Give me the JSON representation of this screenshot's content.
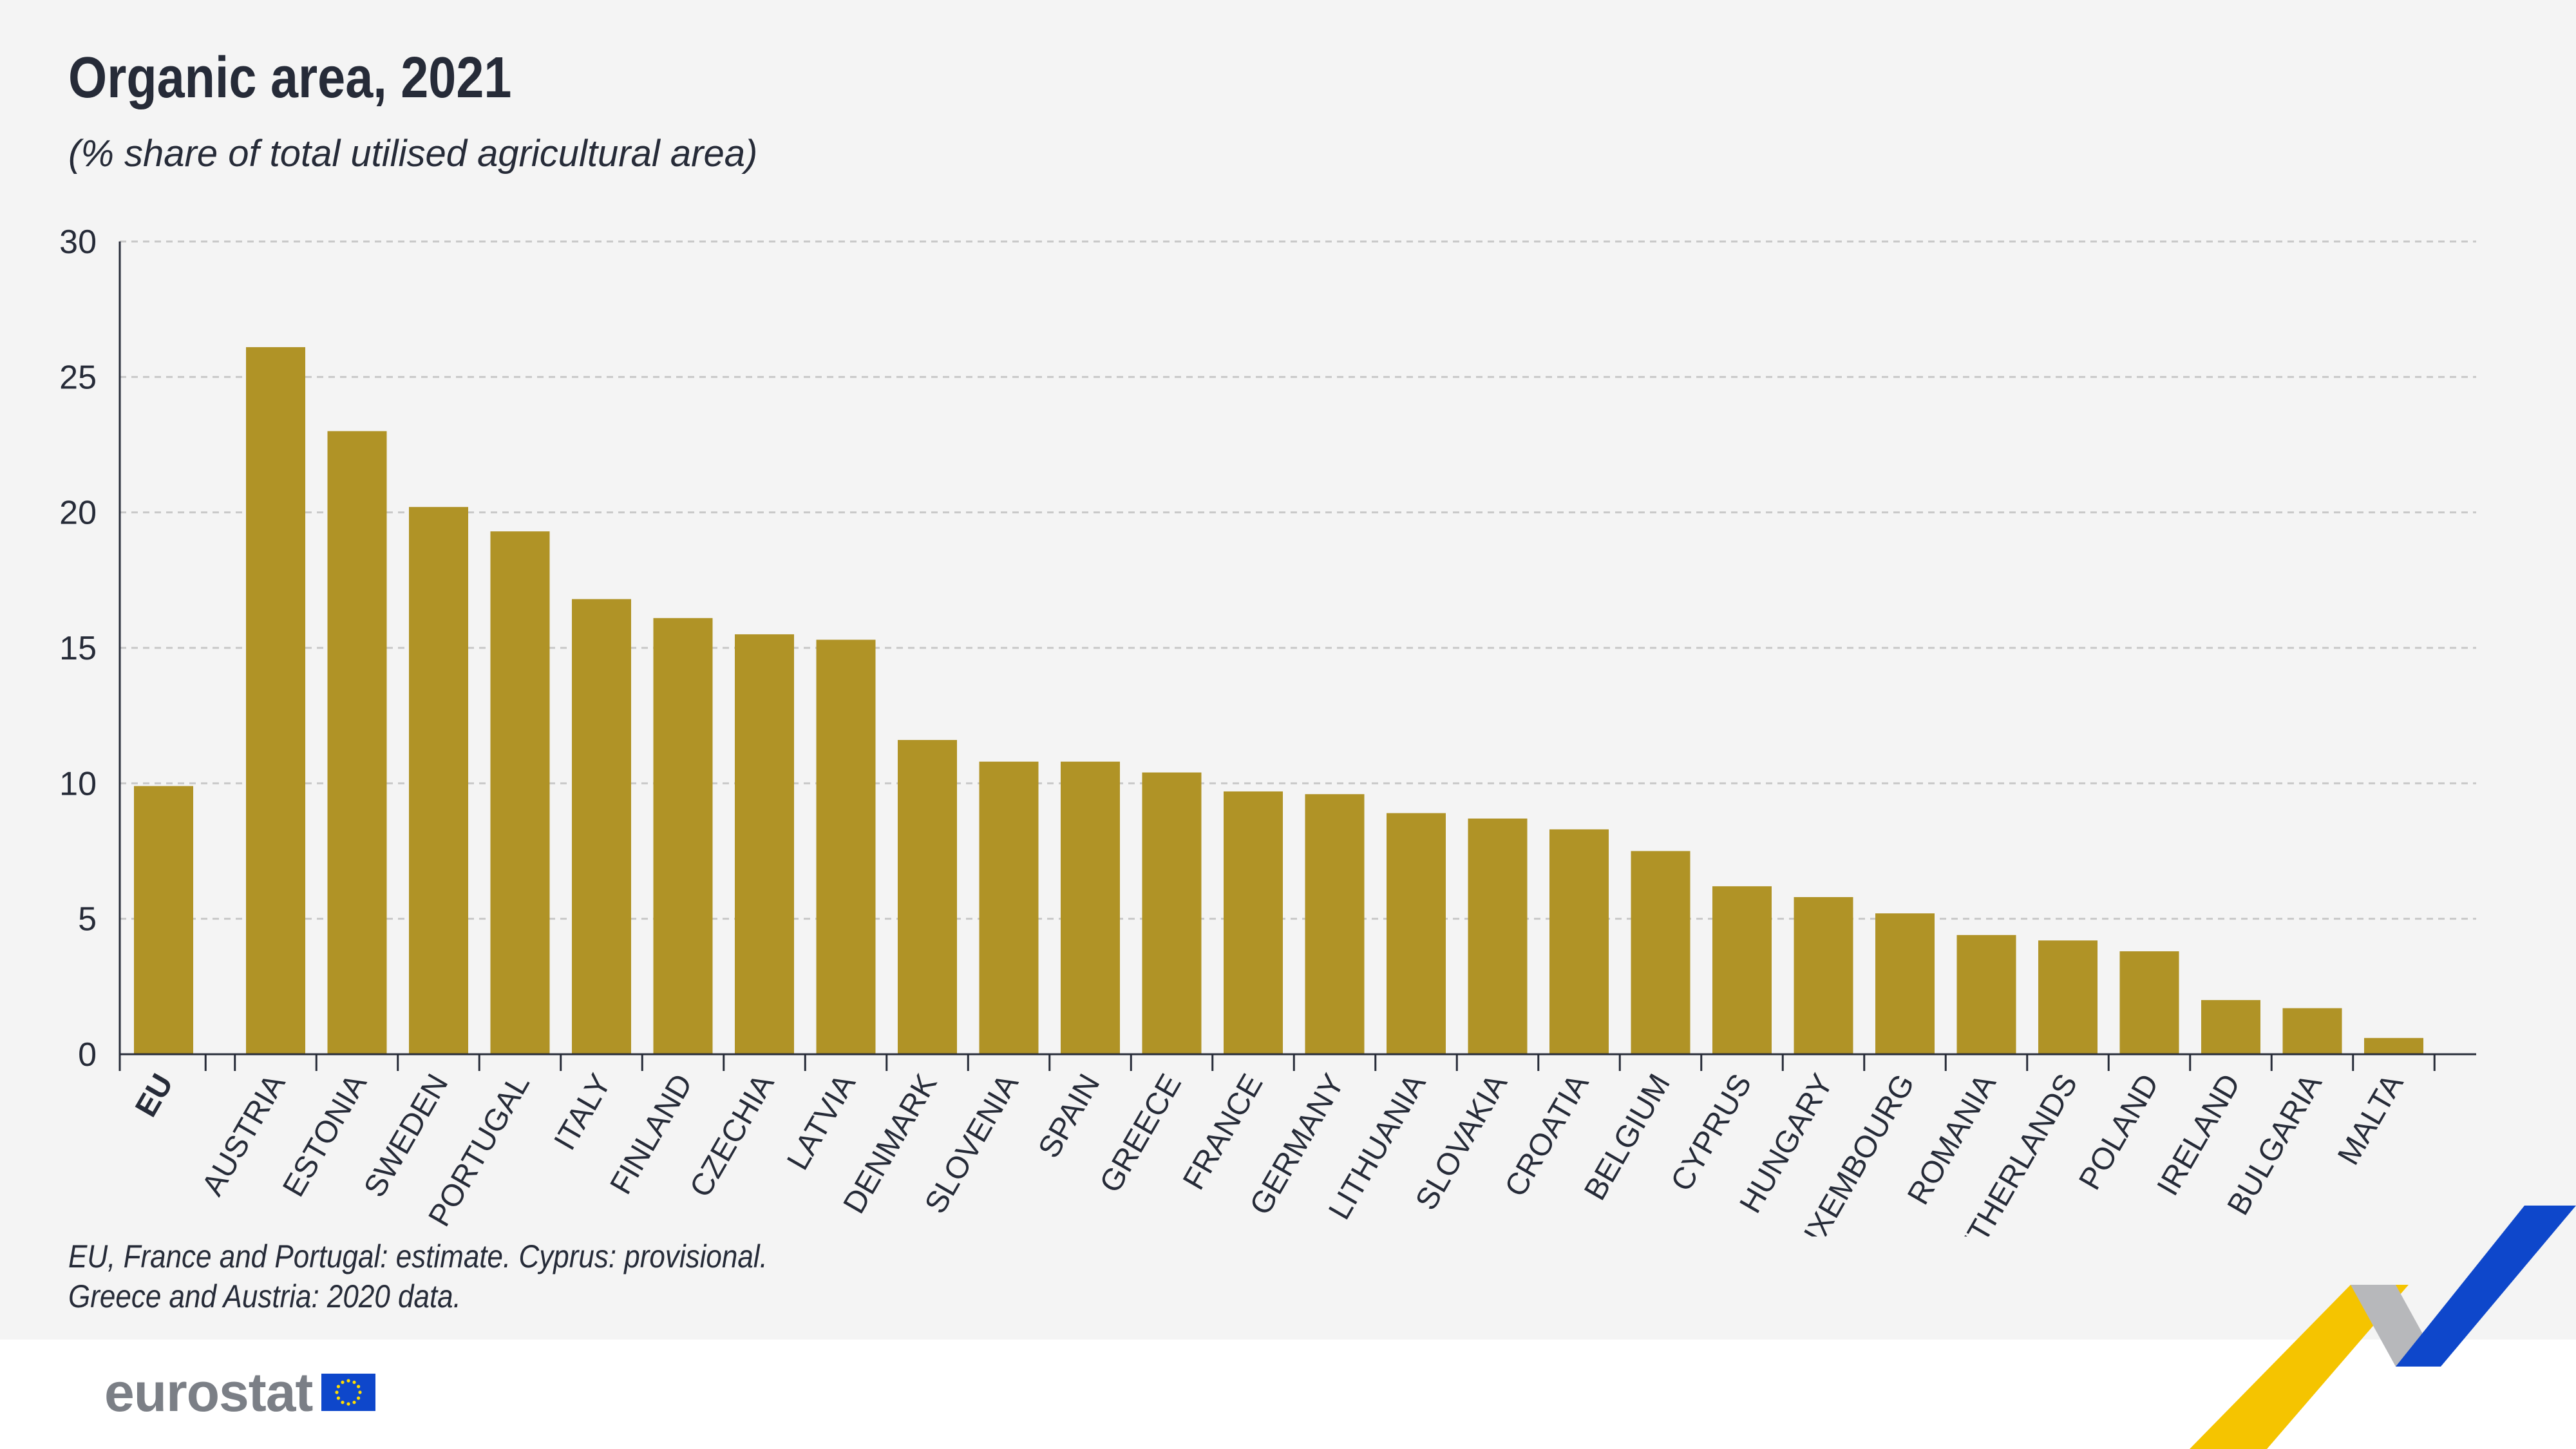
{
  "title": "Organic area, 2021",
  "subtitle": "(% share of total utilised agricultural area)",
  "notes": [
    "EU, France and Portugal: estimate.  Cyprus: provisional.",
    "Greece and Austria: 2020 data."
  ],
  "logo": {
    "text": "eurostat"
  },
  "colors": {
    "bar": "#b09326",
    "grid": "#c8c8c8",
    "axis": "#262b38",
    "background": "#f4f4f4"
  },
  "chart_data": {
    "type": "bar",
    "title": "Organic area, 2021",
    "subtitle": "(% share of total utilised agricultural area)",
    "ylim": [
      0,
      30
    ],
    "yticks": [
      0,
      5,
      10,
      15,
      20,
      25,
      30
    ],
    "grid": true,
    "bold_categories": [
      "EU"
    ],
    "categories": [
      "EU",
      "AUSTRIA",
      "ESTONIA",
      "SWEDEN",
      "PORTUGAL",
      "ITALY",
      "FINLAND",
      "CZECHIA",
      "LATVIA",
      "DENMARK",
      "SLOVENIA",
      "SPAIN",
      "GREECE",
      "FRANCE",
      "GERMANY",
      "LITHUANIA",
      "SLOVAKIA",
      "CROATIA",
      "BELGIUM",
      "CYPRUS",
      "HUNGARY",
      "LUXEMBOURG",
      "ROMANIA",
      "NETHERLANDS",
      "POLAND",
      "IRELAND",
      "BULGARIA",
      "MALTA"
    ],
    "values": [
      9.9,
      26.1,
      23.0,
      20.2,
      19.3,
      16.8,
      16.1,
      15.5,
      15.3,
      11.6,
      10.8,
      10.8,
      10.4,
      9.7,
      9.6,
      8.9,
      8.7,
      8.3,
      7.5,
      6.2,
      5.8,
      5.2,
      4.4,
      4.2,
      3.8,
      2.0,
      1.7,
      0.6
    ]
  }
}
